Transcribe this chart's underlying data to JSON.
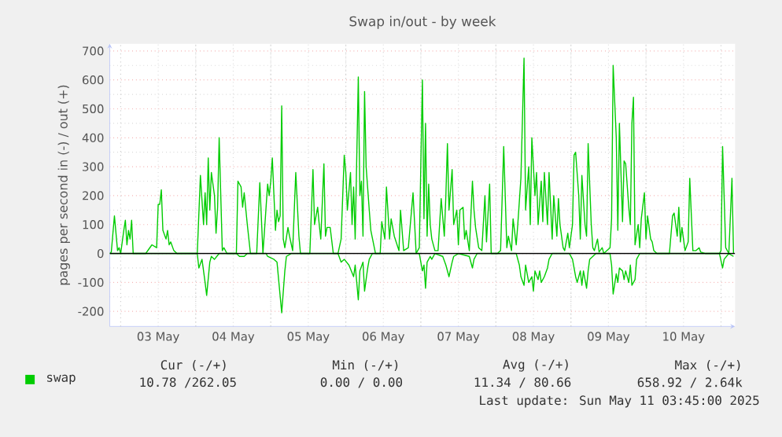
{
  "chart_data": {
    "type": "line",
    "title": "Swap in/out - by week",
    "ylabel": "pages per second in (-) / out (+)",
    "xlim": [
      "2025-05-02T20:30",
      "2025-05-11T04:30"
    ],
    "ylim": [
      -252,
      725
    ],
    "xticks": [
      {
        "value": "2025-05-03T00:00",
        "label": null
      },
      {
        "value": "2025-05-03T12:00",
        "label": "03 May"
      },
      {
        "value": "2025-05-04T00:00",
        "label": null
      },
      {
        "value": "2025-05-04T12:00",
        "label": "04 May"
      },
      {
        "value": "2025-05-05T00:00",
        "label": null
      },
      {
        "value": "2025-05-05T12:00",
        "label": "05 May"
      },
      {
        "value": "2025-05-06T00:00",
        "label": null
      },
      {
        "value": "2025-05-06T12:00",
        "label": "06 May"
      },
      {
        "value": "2025-05-07T00:00",
        "label": null
      },
      {
        "value": "2025-05-07T12:00",
        "label": "07 May"
      },
      {
        "value": "2025-05-08T00:00",
        "label": null
      },
      {
        "value": "2025-05-08T12:00",
        "label": "08 May"
      },
      {
        "value": "2025-05-09T00:00",
        "label": null
      },
      {
        "value": "2025-05-09T12:00",
        "label": "09 May"
      },
      {
        "value": "2025-05-10T00:00",
        "label": null
      },
      {
        "value": "2025-05-10T12:00",
        "label": "10 May"
      },
      {
        "value": "2025-05-11T00:00",
        "label": null
      }
    ],
    "yticks": [
      -200,
      -100,
      0,
      100,
      200,
      300,
      400,
      500,
      600,
      700
    ],
    "grid": true,
    "legend": "bottom",
    "marker": "none",
    "line_style": "solid",
    "ref_lines": [
      {
        "axis": "y",
        "value": 0,
        "color": "#000000"
      }
    ],
    "annotations": [
      "Cur (-/+)",
      "Min (-/+)",
      "Avg (-/+)",
      "Max (-/+)",
      "10.78 /262.05",
      "0.00 / 0.00",
      "11.34 / 80.66",
      "658.92 / 2.64k",
      "Last update: Sun May 11 03:45:00 2025"
    ],
    "series": [
      {
        "name": "swap",
        "color": "#00cc00",
        "x": [
          "2025-05-02T20:30",
          "2025-05-02T21:00",
          "2025-05-02T22:00",
          "2025-05-02T23:00",
          "2025-05-02T23:30",
          "2025-05-03T00:00",
          "2025-05-03T01:00",
          "2025-05-03T01:30",
          "2025-05-03T02:00",
          "2025-05-03T02:30",
          "2025-05-03T03:00",
          "2025-05-03T03:30",
          "2025-05-03T04:00",
          "2025-05-03T08:00",
          "2025-05-03T09:00",
          "2025-05-03T10:00",
          "2025-05-03T11:30",
          "2025-05-03T12:00",
          "2025-05-03T12:30",
          "2025-05-03T13:00",
          "2025-05-03T13:30",
          "2025-05-03T14:30",
          "2025-05-03T15:00",
          "2025-05-03T15:30",
          "2025-05-03T16:00",
          "2025-05-03T17:00",
          "2025-05-03T18:00",
          "2025-05-04T00:30",
          "2025-05-04T01:30",
          "2025-05-04T02:30",
          "2025-05-04T03:00",
          "2025-05-04T03:30",
          "2025-05-04T04:00",
          "2025-05-04T04:30",
          "2025-05-04T05:00",
          "2025-05-04T06:00",
          "2025-05-04T06:30",
          "2025-05-04T07:00",
          "2025-05-04T07:30",
          "2025-05-04T08:30",
          "2025-05-04T09:00",
          "2025-05-04T10:00",
          "2025-05-04T13:00",
          "2025-05-04T13:30",
          "2025-05-04T14:30",
          "2025-05-04T15:00",
          "2025-05-04T15:30",
          "2025-05-04T16:30",
          "2025-05-04T17:30",
          "2025-05-04T19:30",
          "2025-05-04T20:30",
          "2025-05-04T21:30",
          "2025-05-04T23:00",
          "2025-05-04T23:30",
          "2025-05-05T00:00",
          "2025-05-05T00:30",
          "2025-05-05T01:30",
          "2025-05-05T02:00",
          "2025-05-05T02:30",
          "2025-05-05T03:00",
          "2025-05-05T03:30",
          "2025-05-05T04:00",
          "2025-05-05T04:30",
          "2025-05-05T05:30",
          "2025-05-05T06:00",
          "2025-05-05T07:00",
          "2025-05-05T08:00",
          "2025-05-05T09:00",
          "2025-05-05T09:30",
          "2025-05-05T12:30",
          "2025-05-05T13:30",
          "2025-05-05T14:00",
          "2025-05-05T15:00",
          "2025-05-05T15:30",
          "2025-05-05T16:00",
          "2025-05-05T17:00",
          "2025-05-05T17:30",
          "2025-05-05T18:00",
          "2025-05-05T19:00",
          "2025-05-05T20:00",
          "2025-05-05T21:30",
          "2025-05-05T22:30",
          "2025-05-05T23:30",
          "2025-05-06T00:00",
          "2025-05-06T00:30",
          "2025-05-06T01:30",
          "2025-05-06T02:00",
          "2025-05-06T02:30",
          "2025-05-06T03:00",
          "2025-05-06T04:00",
          "2025-05-06T04:30",
          "2025-05-06T05:00",
          "2025-05-06T05:30",
          "2025-05-06T06:00",
          "2025-05-06T06:30",
          "2025-05-06T07:30",
          "2025-05-06T08:00",
          "2025-05-06T09:30",
          "2025-05-06T11:00",
          "2025-05-06T11:30",
          "2025-05-06T12:30",
          "2025-05-06T13:00",
          "2025-05-06T14:00",
          "2025-05-06T14:30",
          "2025-05-06T15:30",
          "2025-05-06T17:00",
          "2025-05-06T17:30",
          "2025-05-06T18:30",
          "2025-05-06T20:00",
          "2025-05-06T21:30",
          "2025-05-06T22:30",
          "2025-05-06T23:30",
          "2025-05-07T00:30",
          "2025-05-07T01:00",
          "2025-05-07T01:30",
          "2025-05-07T02:00",
          "2025-05-07T02:30",
          "2025-05-07T03:00",
          "2025-05-07T03:30",
          "2025-05-07T04:30",
          "2025-05-07T05:30",
          "2025-05-07T06:30",
          "2025-05-07T07:30",
          "2025-05-07T08:00",
          "2025-05-07T08:30",
          "2025-05-07T09:00",
          "2025-05-07T10:00",
          "2025-05-07T10:30",
          "2025-05-07T11:30",
          "2025-05-07T12:00",
          "2025-05-07T12:30",
          "2025-05-07T13:30",
          "2025-05-07T14:00",
          "2025-05-07T14:30",
          "2025-05-07T15:30",
          "2025-05-07T16:30",
          "2025-05-07T17:00",
          "2025-05-07T17:30",
          "2025-05-07T18:30",
          "2025-05-07T19:30",
          "2025-05-07T20:30",
          "2025-05-07T21:00",
          "2025-05-07T22:00",
          "2025-05-07T22:30",
          "2025-05-08T00:30",
          "2025-05-08T01:30",
          "2025-05-08T02:30",
          "2025-05-08T03:30",
          "2025-05-08T04:00",
          "2025-05-08T05:00",
          "2025-05-08T05:30",
          "2025-05-08T06:30",
          "2025-05-08T07:00",
          "2025-05-08T08:00",
          "2025-05-08T09:00",
          "2025-05-08T09:30",
          "2025-05-08T10:30",
          "2025-05-08T11:00",
          "2025-05-08T11:30",
          "2025-05-08T12:30",
          "2025-05-08T13:00",
          "2025-05-08T13:30",
          "2025-05-08T14:30",
          "2025-05-08T15:00",
          "2025-05-08T15:30",
          "2025-05-08T16:30",
          "2025-05-08T17:00",
          "2025-05-08T18:00",
          "2025-05-08T18:30",
          "2025-05-08T19:30",
          "2025-05-08T20:00",
          "2025-05-08T20:30",
          "2025-05-08T21:30",
          "2025-05-08T22:00",
          "2025-05-08T23:00",
          "2025-05-08T23:30",
          "2025-05-09T00:30",
          "2025-05-09T01:00",
          "2025-05-09T01:30",
          "2025-05-09T02:30",
          "2025-05-09T03:00",
          "2025-05-09T03:30",
          "2025-05-09T04:30",
          "2025-05-09T05:00",
          "2025-05-09T05:30",
          "2025-05-09T06:30",
          "2025-05-09T07:00",
          "2025-05-09T07:30",
          "2025-05-09T08:30",
          "2025-05-09T09:00",
          "2025-05-09T10:00",
          "2025-05-09T10:30",
          "2025-05-09T11:30",
          "2025-05-09T12:30",
          "2025-05-09T13:00",
          "2025-05-09T13:30",
          "2025-05-09T14:30",
          "2025-05-09T15:00",
          "2025-05-09T15:30",
          "2025-05-09T16:30",
          "2025-05-09T17:00",
          "2025-05-09T17:30",
          "2025-05-09T18:30",
          "2025-05-09T19:00",
          "2025-05-09T19:30",
          "2025-05-09T20:00",
          "2025-05-09T20:30",
          "2025-05-09T21:30",
          "2025-05-09T22:00",
          "2025-05-09T22:30",
          "2025-05-09T23:30",
          "2025-05-10T00:00",
          "2025-05-10T00:30",
          "2025-05-10T01:30",
          "2025-05-10T02:00",
          "2025-05-10T02:30",
          "2025-05-10T03:30",
          "2025-05-10T07:30",
          "2025-05-10T08:30",
          "2025-05-10T09:00",
          "2025-05-10T10:00",
          "2025-05-10T10:30",
          "2025-05-10T11:00",
          "2025-05-10T11:30",
          "2025-05-10T12:30",
          "2025-05-10T13:30",
          "2025-05-10T14:00",
          "2025-05-10T15:00",
          "2025-05-10T16:00",
          "2025-05-10T17:00",
          "2025-05-10T17:30",
          "2025-05-10T19:00",
          "2025-05-10T23:30",
          "2025-05-11T00:00",
          "2025-05-11T00:30",
          "2025-05-11T01:30",
          "2025-05-11T02:30",
          "2025-05-11T03:30",
          "2025-05-11T04:00"
        ],
        "values": [
          0,
          5,
          130,
          10,
          20,
          0,
          80,
          115,
          30,
          80,
          50,
          115,
          0,
          0,
          15,
          30,
          20,
          170,
          170,
          220,
          80,
          50,
          80,
          30,
          40,
          10,
          0,
          0,
          270,
          100,
          210,
          100,
          330,
          150,
          280,
          200,
          70,
          160,
          400,
          10,
          20,
          0,
          0,
          250,
          230,
          160,
          210,
          100,
          0,
          0,
          245,
          0,
          240,
          200,
          250,
          330,
          80,
          150,
          110,
          130,
          510,
          50,
          20,
          90,
          60,
          10,
          280,
          60,
          0,
          0,
          290,
          100,
          160,
          100,
          50,
          310,
          60,
          90,
          90,
          0,
          0,
          50,
          340,
          280,
          150,
          280,
          100,
          230,
          50,
          610,
          200,
          250,
          60,
          560,
          300,
          150,
          80,
          0,
          0,
          110,
          50,
          230,
          50,
          120,
          60,
          10,
          150,
          10,
          20,
          210,
          0,
          20,
          600,
          120,
          450,
          60,
          240,
          100,
          50,
          10,
          10,
          190,
          60,
          200,
          380,
          150,
          290,
          100,
          150,
          30,
          150,
          160,
          50,
          80,
          10,
          250,
          150,
          90,
          20,
          10,
          200,
          40,
          240,
          0,
          0,
          10,
          370,
          20,
          60,
          10,
          120,
          30,
          100,
          260,
          675,
          150,
          300,
          100,
          400,
          200,
          280,
          100,
          250,
          110,
          280,
          100,
          280,
          50,
          200,
          60,
          190,
          100,
          20,
          10,
          70,
          20,
          100,
          340,
          350,
          200,
          50,
          270,
          100,
          60,
          380,
          100,
          20,
          10,
          50,
          5,
          20,
          0,
          10,
          20,
          120,
          650,
          400,
          80,
          450,
          110,
          320,
          310,
          160,
          100,
          450,
          540,
          30,
          100,
          20,
          120,
          210,
          50,
          130,
          50,
          40,
          10,
          0,
          0,
          130,
          140,
          60,
          160,
          40,
          90,
          10,
          40,
          260,
          10,
          10,
          20,
          5,
          0,
          0,
          10,
          370,
          20,
          0,
          260,
          0
        ]
      },
      {
        "color": "#00cc00",
        "x": [
          "2025-05-02T20:30",
          "2025-05-04T00:30",
          "2025-05-04T01:00",
          "2025-05-04T02:00",
          "2025-05-04T03:00",
          "2025-05-04T03:30",
          "2025-05-04T04:30",
          "2025-05-04T05:00",
          "2025-05-04T06:00",
          "2025-05-04T07:30",
          "2025-05-04T13:00",
          "2025-05-04T14:00",
          "2025-05-04T15:30",
          "2025-05-04T16:30",
          "2025-05-04T22:30",
          "2025-05-04T23:00",
          "2025-05-05T01:00",
          "2025-05-05T02:00",
          "2025-05-05T03:30",
          "2025-05-05T04:30",
          "2025-05-05T05:00",
          "2025-05-05T06:30",
          "2025-05-05T21:30",
          "2025-05-05T22:30",
          "2025-05-05T23:30",
          "2025-05-06T01:00",
          "2025-05-06T02:30",
          "2025-05-06T03:00",
          "2025-05-06T04:00",
          "2025-05-06T04:30",
          "2025-05-06T05:30",
          "2025-05-06T06:00",
          "2025-05-06T07:00",
          "2025-05-06T07:30",
          "2025-05-06T08:30",
          "2025-05-06T23:30",
          "2025-05-07T00:30",
          "2025-05-07T01:00",
          "2025-05-07T01:30",
          "2025-05-07T02:00",
          "2025-05-07T03:00",
          "2025-05-07T03:30",
          "2025-05-07T04:30",
          "2025-05-07T07:00",
          "2025-05-07T08:00",
          "2025-05-07T08:30",
          "2025-05-07T09:00",
          "2025-05-07T10:00",
          "2025-05-07T10:30",
          "2025-05-07T12:00",
          "2025-05-07T15:30",
          "2025-05-07T16:30",
          "2025-05-07T17:00",
          "2025-05-07T18:00",
          "2025-05-08T06:30",
          "2025-05-08T07:30",
          "2025-05-08T08:00",
          "2025-05-08T09:00",
          "2025-05-08T09:30",
          "2025-05-08T10:30",
          "2025-05-08T11:30",
          "2025-05-08T12:00",
          "2025-05-08T12:30",
          "2025-05-08T13:30",
          "2025-05-08T14:00",
          "2025-05-08T14:30",
          "2025-05-08T15:30",
          "2025-05-08T16:30",
          "2025-05-08T17:00",
          "2025-05-08T18:00",
          "2025-05-08T23:30",
          "2025-05-09T00:30",
          "2025-05-09T01:30",
          "2025-05-09T02:00",
          "2025-05-09T03:00",
          "2025-05-09T03:30",
          "2025-05-09T04:00",
          "2025-05-09T05:00",
          "2025-05-09T05:30",
          "2025-05-09T06:00",
          "2025-05-09T07:00",
          "2025-05-09T08:00",
          "2025-05-09T12:30",
          "2025-05-09T13:00",
          "2025-05-09T13:30",
          "2025-05-09T14:30",
          "2025-05-09T15:00",
          "2025-05-09T15:30",
          "2025-05-09T16:30",
          "2025-05-09T17:00",
          "2025-05-09T17:30",
          "2025-05-09T18:30",
          "2025-05-09T19:00",
          "2025-05-09T19:30",
          "2025-05-09T20:30",
          "2025-05-09T21:00",
          "2025-05-09T22:00",
          "2025-05-10T23:30",
          "2025-05-11T00:30",
          "2025-05-11T01:00",
          "2025-05-11T02:30",
          "2025-05-11T04:00"
        ],
        "values": [
          0,
          0,
          -50,
          -20,
          -100,
          -145,
          -30,
          -10,
          -20,
          0,
          0,
          -10,
          -10,
          0,
          0,
          -10,
          -20,
          -30,
          -205,
          -60,
          -10,
          0,
          0,
          -30,
          -20,
          -40,
          -80,
          -40,
          -160,
          -60,
          -30,
          -130,
          -50,
          -20,
          0,
          0,
          -60,
          -40,
          -120,
          -30,
          -10,
          -20,
          0,
          -10,
          -40,
          -60,
          -80,
          -30,
          -10,
          0,
          -10,
          -50,
          -20,
          0,
          0,
          -40,
          -80,
          -110,
          -40,
          -100,
          -80,
          -130,
          -60,
          -90,
          -60,
          -100,
          -80,
          -50,
          -20,
          0,
          0,
          -20,
          -80,
          -100,
          -60,
          -110,
          -60,
          -120,
          -60,
          -20,
          -10,
          0,
          0,
          -40,
          -140,
          -70,
          -100,
          -50,
          -60,
          -90,
          -60,
          -100,
          -40,
          -110,
          -90,
          -20,
          0,
          0,
          -50,
          -20,
          0,
          -10
        ]
      }
    ]
  }
}
